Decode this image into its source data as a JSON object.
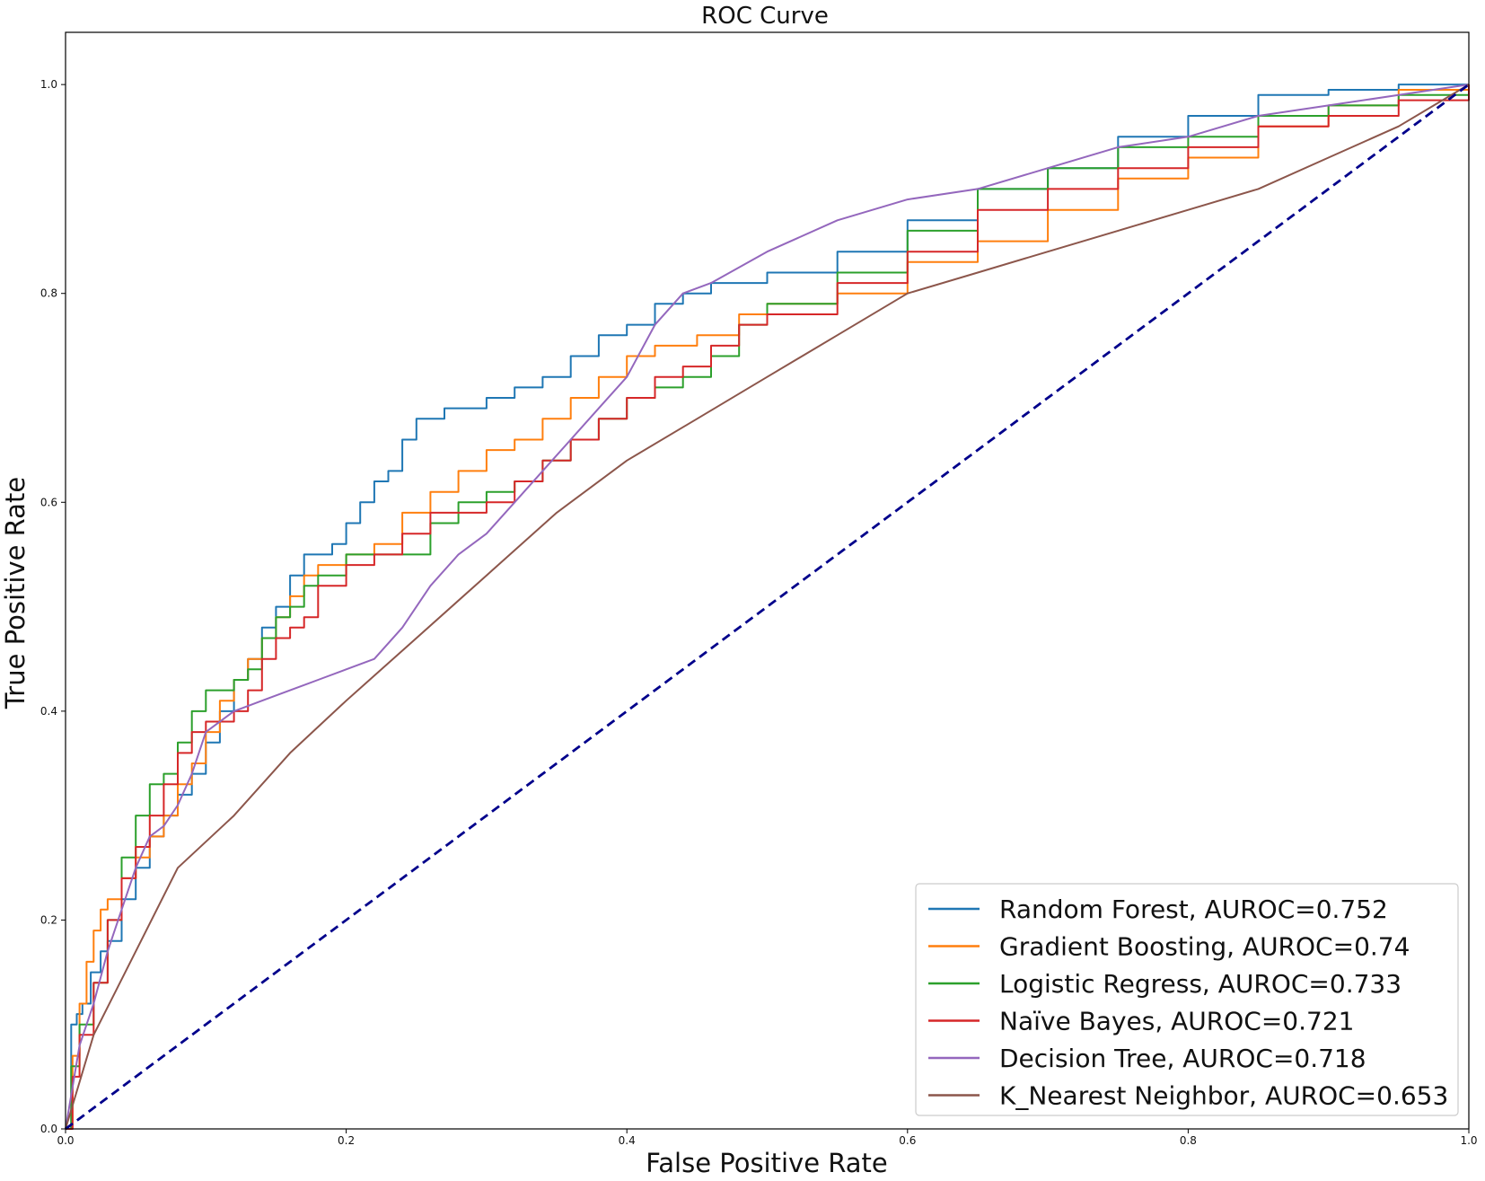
{
  "chart_data": {
    "type": "line",
    "title": "ROC Curve",
    "xlabel": "False Positive Rate",
    "ylabel": "True Positive Rate",
    "xlim": [
      0.0,
      1.0
    ],
    "ylim": [
      0.0,
      1.05
    ],
    "xticks": [
      "0.0",
      "0.2",
      "0.4",
      "0.6",
      "0.8",
      "1.0"
    ],
    "yticks": [
      "0.0",
      "0.2",
      "0.4",
      "0.6",
      "0.8",
      "1.0"
    ],
    "grid": false,
    "legend_position": "lower-right",
    "series": [
      {
        "name": "Random Forest, AUROC=0.752",
        "color": "#1f77b4",
        "style": "step",
        "x": [
          0,
          0.004,
          0.008,
          0.012,
          0.018,
          0.025,
          0.03,
          0.04,
          0.05,
          0.06,
          0.07,
          0.08,
          0.09,
          0.1,
          0.11,
          0.12,
          0.13,
          0.14,
          0.15,
          0.16,
          0.17,
          0.18,
          0.19,
          0.2,
          0.21,
          0.22,
          0.23,
          0.24,
          0.25,
          0.26,
          0.27,
          0.28,
          0.3,
          0.32,
          0.34,
          0.36,
          0.38,
          0.4,
          0.42,
          0.44,
          0.46,
          0.5,
          0.55,
          0.6,
          0.65,
          0.7,
          0.75,
          0.8,
          0.85,
          0.9,
          0.95,
          1.0
        ],
        "y": [
          0,
          0.1,
          0.11,
          0.12,
          0.15,
          0.17,
          0.18,
          0.22,
          0.25,
          0.28,
          0.3,
          0.32,
          0.34,
          0.37,
          0.4,
          0.43,
          0.45,
          0.48,
          0.5,
          0.53,
          0.55,
          0.55,
          0.56,
          0.58,
          0.6,
          0.62,
          0.63,
          0.66,
          0.68,
          0.68,
          0.69,
          0.69,
          0.7,
          0.71,
          0.72,
          0.74,
          0.76,
          0.77,
          0.79,
          0.8,
          0.81,
          0.82,
          0.84,
          0.87,
          0.9,
          0.92,
          0.95,
          0.97,
          0.99,
          0.995,
          1.0,
          1.0
        ]
      },
      {
        "name": "Gradient Boosting, AUROC=0.74",
        "color": "#ff7f0e",
        "style": "step",
        "x": [
          0,
          0.005,
          0.01,
          0.015,
          0.02,
          0.025,
          0.03,
          0.04,
          0.05,
          0.06,
          0.07,
          0.08,
          0.09,
          0.1,
          0.11,
          0.12,
          0.13,
          0.14,
          0.15,
          0.16,
          0.17,
          0.18,
          0.2,
          0.22,
          0.24,
          0.26,
          0.28,
          0.3,
          0.32,
          0.34,
          0.36,
          0.38,
          0.4,
          0.42,
          0.45,
          0.48,
          0.5,
          0.55,
          0.6,
          0.65,
          0.7,
          0.75,
          0.8,
          0.85,
          0.9,
          0.95,
          1.0
        ],
        "y": [
          0,
          0.07,
          0.12,
          0.16,
          0.19,
          0.21,
          0.22,
          0.24,
          0.26,
          0.28,
          0.3,
          0.33,
          0.35,
          0.38,
          0.41,
          0.43,
          0.45,
          0.47,
          0.49,
          0.51,
          0.53,
          0.54,
          0.55,
          0.56,
          0.59,
          0.61,
          0.63,
          0.65,
          0.66,
          0.68,
          0.7,
          0.72,
          0.74,
          0.75,
          0.76,
          0.78,
          0.79,
          0.8,
          0.83,
          0.85,
          0.88,
          0.91,
          0.93,
          0.96,
          0.98,
          0.995,
          1.0
        ]
      },
      {
        "name": "Logistic Regress, AUROC=0.733",
        "color": "#2ca02c",
        "style": "step",
        "x": [
          0,
          0.004,
          0.01,
          0.02,
          0.03,
          0.04,
          0.05,
          0.06,
          0.07,
          0.08,
          0.09,
          0.1,
          0.11,
          0.12,
          0.13,
          0.14,
          0.15,
          0.16,
          0.17,
          0.18,
          0.2,
          0.22,
          0.24,
          0.26,
          0.28,
          0.3,
          0.32,
          0.34,
          0.36,
          0.38,
          0.4,
          0.42,
          0.44,
          0.46,
          0.48,
          0.5,
          0.55,
          0.6,
          0.65,
          0.7,
          0.75,
          0.8,
          0.85,
          0.9,
          0.95,
          1.0
        ],
        "y": [
          0,
          0.06,
          0.1,
          0.14,
          0.2,
          0.26,
          0.3,
          0.33,
          0.34,
          0.37,
          0.4,
          0.42,
          0.42,
          0.43,
          0.44,
          0.47,
          0.49,
          0.5,
          0.52,
          0.53,
          0.55,
          0.55,
          0.55,
          0.58,
          0.6,
          0.61,
          0.62,
          0.64,
          0.66,
          0.68,
          0.7,
          0.71,
          0.72,
          0.74,
          0.77,
          0.79,
          0.82,
          0.86,
          0.9,
          0.92,
          0.94,
          0.95,
          0.97,
          0.98,
          0.99,
          1.0
        ]
      },
      {
        "name": "Naïve Bayes, AUROC=0.721",
        "color": "#d62728",
        "style": "step",
        "x": [
          0,
          0.005,
          0.01,
          0.02,
          0.03,
          0.04,
          0.05,
          0.06,
          0.07,
          0.08,
          0.09,
          0.1,
          0.11,
          0.12,
          0.13,
          0.14,
          0.15,
          0.16,
          0.17,
          0.18,
          0.2,
          0.22,
          0.24,
          0.26,
          0.28,
          0.3,
          0.32,
          0.34,
          0.36,
          0.38,
          0.4,
          0.42,
          0.44,
          0.46,
          0.48,
          0.5,
          0.55,
          0.6,
          0.65,
          0.7,
          0.75,
          0.8,
          0.85,
          0.9,
          0.95,
          1.0
        ],
        "y": [
          0,
          0.05,
          0.09,
          0.14,
          0.2,
          0.24,
          0.27,
          0.3,
          0.33,
          0.36,
          0.38,
          0.39,
          0.39,
          0.4,
          0.42,
          0.45,
          0.47,
          0.48,
          0.49,
          0.52,
          0.54,
          0.55,
          0.57,
          0.59,
          0.59,
          0.6,
          0.62,
          0.64,
          0.66,
          0.68,
          0.7,
          0.72,
          0.73,
          0.75,
          0.77,
          0.78,
          0.81,
          0.84,
          0.88,
          0.9,
          0.92,
          0.94,
          0.96,
          0.97,
          0.985,
          1.0
        ]
      },
      {
        "name": "Decision Tree, AUROC=0.718",
        "color": "#9467bd",
        "style": "line",
        "x": [
          0,
          0.01,
          0.02,
          0.03,
          0.04,
          0.05,
          0.06,
          0.07,
          0.08,
          0.09,
          0.1,
          0.12,
          0.14,
          0.16,
          0.18,
          0.2,
          0.22,
          0.24,
          0.26,
          0.28,
          0.3,
          0.32,
          0.34,
          0.36,
          0.38,
          0.4,
          0.42,
          0.44,
          0.46,
          0.5,
          0.55,
          0.6,
          0.65,
          0.7,
          0.75,
          0.8,
          0.85,
          0.9,
          0.95,
          1.0
        ],
        "y": [
          0,
          0.08,
          0.12,
          0.17,
          0.21,
          0.25,
          0.28,
          0.29,
          0.31,
          0.34,
          0.38,
          0.4,
          0.41,
          0.42,
          0.43,
          0.44,
          0.45,
          0.48,
          0.52,
          0.55,
          0.57,
          0.6,
          0.63,
          0.66,
          0.69,
          0.72,
          0.77,
          0.8,
          0.81,
          0.84,
          0.87,
          0.89,
          0.9,
          0.92,
          0.94,
          0.95,
          0.97,
          0.98,
          0.99,
          1.0
        ]
      },
      {
        "name": "K_Nearest Neighbor, AUROC=0.653",
        "color": "#8c564b",
        "style": "line",
        "x": [
          0,
          0.02,
          0.05,
          0.08,
          0.12,
          0.16,
          0.2,
          0.25,
          0.3,
          0.35,
          0.4,
          0.45,
          0.5,
          0.55,
          0.6,
          0.65,
          0.7,
          0.75,
          0.8,
          0.85,
          0.9,
          0.95,
          1.0
        ],
        "y": [
          0,
          0.09,
          0.17,
          0.25,
          0.3,
          0.36,
          0.41,
          0.47,
          0.53,
          0.59,
          0.64,
          0.68,
          0.72,
          0.76,
          0.8,
          0.82,
          0.84,
          0.86,
          0.88,
          0.9,
          0.93,
          0.96,
          1.0
        ]
      },
      {
        "name": "",
        "color": "#00008b",
        "style": "dashed",
        "x": [
          0,
          1
        ],
        "y": [
          0,
          1
        ]
      }
    ]
  }
}
